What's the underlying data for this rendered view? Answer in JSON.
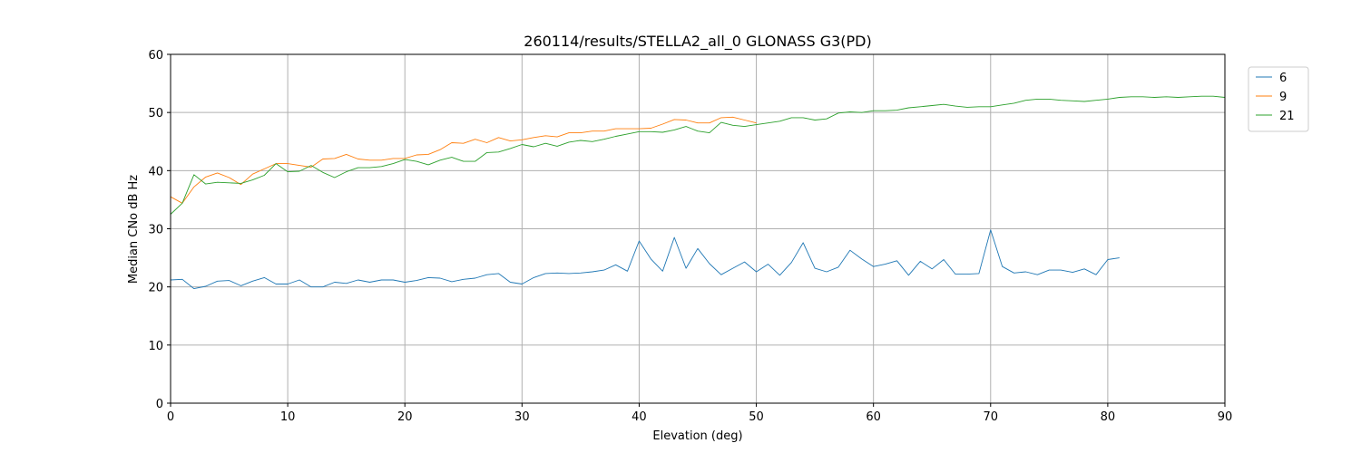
{
  "chart_data": {
    "type": "line",
    "title": "260114/results/STELLA2_all_0 GLONASS G3(PD)",
    "xlabel": "Elevation (deg)",
    "ylabel": "Median CNo dB Hz",
    "xlim": [
      0,
      90
    ],
    "ylim": [
      0,
      60
    ],
    "xticks": [
      0,
      10,
      20,
      30,
      40,
      50,
      60,
      70,
      80,
      90
    ],
    "yticks": [
      0,
      10,
      20,
      30,
      40,
      50,
      60
    ],
    "xtick_labels": [
      "0",
      "10",
      "20",
      "30",
      "40",
      "50",
      "60",
      "70",
      "80",
      "90"
    ],
    "ytick_labels": [
      "0",
      "10",
      "20",
      "30",
      "40",
      "50",
      "60"
    ],
    "grid": true,
    "legend_position": "top-right",
    "series": [
      {
        "name": "6",
        "color": "#1f77b4",
        "x": [
          0,
          1,
          2,
          3,
          4,
          5,
          6,
          7,
          8,
          9,
          10,
          11,
          12,
          13,
          14,
          15,
          16,
          17,
          18,
          19,
          20,
          21,
          22,
          23,
          24,
          25,
          26,
          27,
          28,
          29,
          30,
          31,
          32,
          33,
          34,
          35,
          36,
          37,
          38,
          39,
          40,
          41,
          42,
          43,
          44,
          45,
          46,
          47,
          48,
          49,
          50,
          51,
          52,
          53,
          54,
          55,
          56,
          57,
          58,
          59,
          60,
          61,
          62,
          63,
          64,
          65,
          66,
          67,
          68,
          69,
          70,
          71,
          72,
          73,
          74,
          75,
          76,
          77,
          78,
          79,
          80,
          81
        ],
        "y": [
          21.2,
          21.3,
          19.7,
          20.1,
          21.0,
          21.1,
          20.2,
          21.0,
          21.6,
          20.5,
          20.5,
          21.2,
          20.0,
          20.0,
          20.8,
          20.6,
          21.2,
          20.8,
          21.2,
          21.2,
          20.8,
          21.1,
          21.6,
          21.5,
          20.9,
          21.3,
          21.5,
          22.1,
          22.3,
          20.8,
          20.5,
          21.6,
          22.3,
          22.4,
          22.3,
          22.4,
          22.6,
          22.9,
          23.8,
          22.7,
          27.9,
          24.8,
          22.7,
          28.5,
          23.2,
          26.6,
          24.0,
          22.1,
          23.2,
          24.3,
          22.6,
          23.9,
          22.0,
          24.2,
          27.6,
          23.2,
          22.6,
          23.4,
          26.3,
          24.8,
          23.5,
          23.9,
          24.5,
          22.0,
          24.4,
          23.1,
          24.7,
          22.2,
          22.2,
          22.3,
          29.8,
          23.5,
          22.4,
          22.6,
          22.1,
          22.9,
          22.9,
          22.5,
          23.1,
          22.1,
          24.7,
          25.0
        ]
      },
      {
        "name": "9",
        "color": "#ff7f0e",
        "x": [
          0,
          1,
          2,
          3,
          4,
          5,
          6,
          7,
          8,
          9,
          10,
          11,
          12,
          13,
          14,
          15,
          16,
          17,
          18,
          19,
          20,
          21,
          22,
          23,
          24,
          25,
          26,
          27,
          28,
          29,
          30,
          31,
          32,
          33,
          34,
          35,
          36,
          37,
          38,
          39,
          40,
          41,
          42,
          43,
          44,
          45,
          46,
          47,
          48,
          49,
          50
        ],
        "y": [
          35.5,
          34.4,
          37.2,
          38.9,
          39.6,
          38.8,
          37.6,
          39.4,
          40.3,
          41.2,
          41.2,
          40.9,
          40.6,
          42.0,
          42.1,
          42.8,
          42.0,
          41.8,
          41.8,
          42.1,
          42.1,
          42.7,
          42.8,
          43.6,
          44.8,
          44.7,
          45.4,
          44.8,
          45.7,
          45.1,
          45.3,
          45.7,
          46.0,
          45.8,
          46.5,
          46.5,
          46.8,
          46.8,
          47.2,
          47.2,
          47.2,
          47.3,
          48.0,
          48.8,
          48.7,
          48.2,
          48.2,
          49.1,
          49.2,
          48.7,
          48.2
        ]
      },
      {
        "name": "21",
        "color": "#2ca02c",
        "x": [
          0,
          1,
          2,
          3,
          4,
          5,
          6,
          7,
          8,
          9,
          10,
          11,
          12,
          13,
          14,
          15,
          16,
          17,
          18,
          19,
          20,
          21,
          22,
          23,
          24,
          25,
          26,
          27,
          28,
          29,
          30,
          31,
          32,
          33,
          34,
          35,
          36,
          37,
          38,
          39,
          40,
          41,
          42,
          43,
          44,
          45,
          46,
          47,
          48,
          49,
          50,
          51,
          52,
          53,
          54,
          55,
          56,
          57,
          58,
          59,
          60,
          61,
          62,
          63,
          64,
          65,
          66,
          67,
          68,
          69,
          70,
          71,
          72,
          73,
          74,
          75,
          76,
          77,
          78,
          79,
          80,
          81,
          82,
          83,
          84,
          85,
          86,
          87,
          88,
          89,
          90
        ],
        "y": [
          32.5,
          34.4,
          39.3,
          37.7,
          38.0,
          37.9,
          37.8,
          38.4,
          39.2,
          41.2,
          39.8,
          39.9,
          40.9,
          39.7,
          38.8,
          39.8,
          40.5,
          40.5,
          40.7,
          41.2,
          41.9,
          41.6,
          41.0,
          41.8,
          42.3,
          41.6,
          41.6,
          43.1,
          43.2,
          43.8,
          44.5,
          44.1,
          44.7,
          44.2,
          44.9,
          45.2,
          45.0,
          45.4,
          45.9,
          46.3,
          46.7,
          46.7,
          46.6,
          47.0,
          47.6,
          46.8,
          46.5,
          48.3,
          47.8,
          47.6,
          47.9,
          48.2,
          48.5,
          49.1,
          49.1,
          48.7,
          48.9,
          49.9,
          50.1,
          50.0,
          50.3,
          50.3,
          50.4,
          50.8,
          51.0,
          51.2,
          51.4,
          51.1,
          50.9,
          51.0,
          51.0,
          51.3,
          51.6,
          52.1,
          52.3,
          52.3,
          52.1,
          52.0,
          51.9,
          52.1,
          52.3,
          52.6,
          52.7,
          52.7,
          52.6,
          52.7,
          52.6,
          52.7,
          52.8,
          52.8,
          52.6
        ]
      }
    ]
  }
}
